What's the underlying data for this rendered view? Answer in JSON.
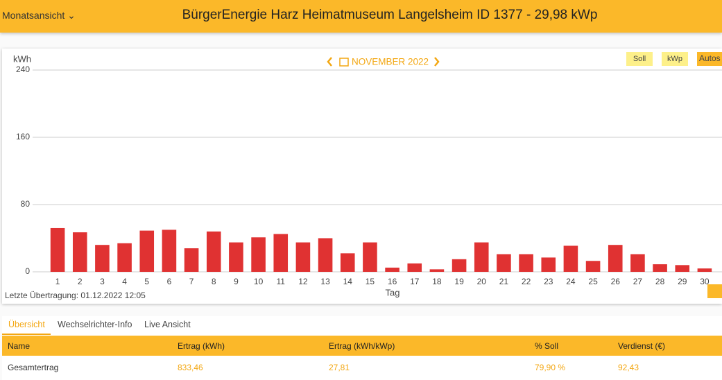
{
  "header": {
    "view_select": "Monatsansicht",
    "title": "BürgerEnergie Harz Heimatmuseum Langelsheim ID 1377 - 29,98 kWp"
  },
  "chart_data": {
    "type": "bar",
    "period": "NOVEMBER 2022",
    "buttons": [
      "Soll",
      "kWp",
      "Autos"
    ],
    "y_label": "kWh",
    "x_label": "Tag",
    "categories": [
      "1",
      "2",
      "3",
      "4",
      "5",
      "6",
      "7",
      "8",
      "9",
      "10",
      "11",
      "12",
      "13",
      "14",
      "15",
      "16",
      "17",
      "18",
      "19",
      "20",
      "21",
      "22",
      "23",
      "24",
      "25",
      "26",
      "27",
      "28",
      "29",
      "30"
    ],
    "values": [
      52,
      47,
      32,
      34,
      49,
      50,
      28,
      48,
      35,
      41,
      45,
      35,
      40,
      22,
      35,
      5,
      10,
      3,
      15,
      35,
      21,
      21,
      17,
      31,
      13,
      32,
      21,
      9,
      8,
      4
    ],
    "color": "#e03232",
    "ylim": [
      0,
      240
    ],
    "yticks": [
      0,
      80,
      160,
      240
    ],
    "grid": true,
    "footnote": "Letzte Übertragung: 01.12.2022 12:05"
  },
  "tabs": [
    "Übersicht",
    "Wechselrichter-Info",
    "Live Ansicht"
  ],
  "table": {
    "columns": [
      "Name",
      "Ertrag (kWh)",
      "Ertrag (kWh/kWp)",
      "% Soll",
      "Verdienst (€)"
    ],
    "rows": [
      [
        "Gesamtertrag",
        "833,46",
        "27,81",
        "79,90 %",
        "92,43"
      ]
    ]
  }
}
